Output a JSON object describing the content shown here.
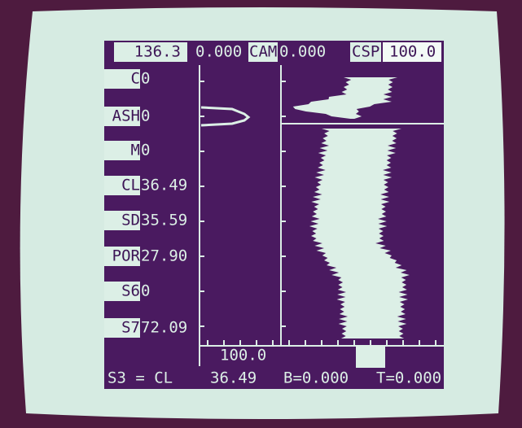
{
  "header": {
    "depth": "136.3",
    "field": "0.000",
    "cam_label": "CAM",
    "cam_value": "0.000",
    "csp_label": "CSP",
    "csp_value": "100.0"
  },
  "curves": [
    {
      "name": "C",
      "value": "0"
    },
    {
      "name": "ASH",
      "value": "0"
    },
    {
      "name": "M",
      "value": "0"
    },
    {
      "name": "CL",
      "value": "36.49"
    },
    {
      "name": "SD",
      "value": "35.59"
    },
    {
      "name": "POR",
      "value": "27.90"
    },
    {
      "name": "S6",
      "value": "0"
    },
    {
      "name": "S7",
      "value": "72.09"
    }
  ],
  "scale_label": "100.0",
  "status": {
    "selection": "S3 = CL",
    "value": "36.49",
    "b": "B=0.000",
    "t": "T=0.000"
  }
}
